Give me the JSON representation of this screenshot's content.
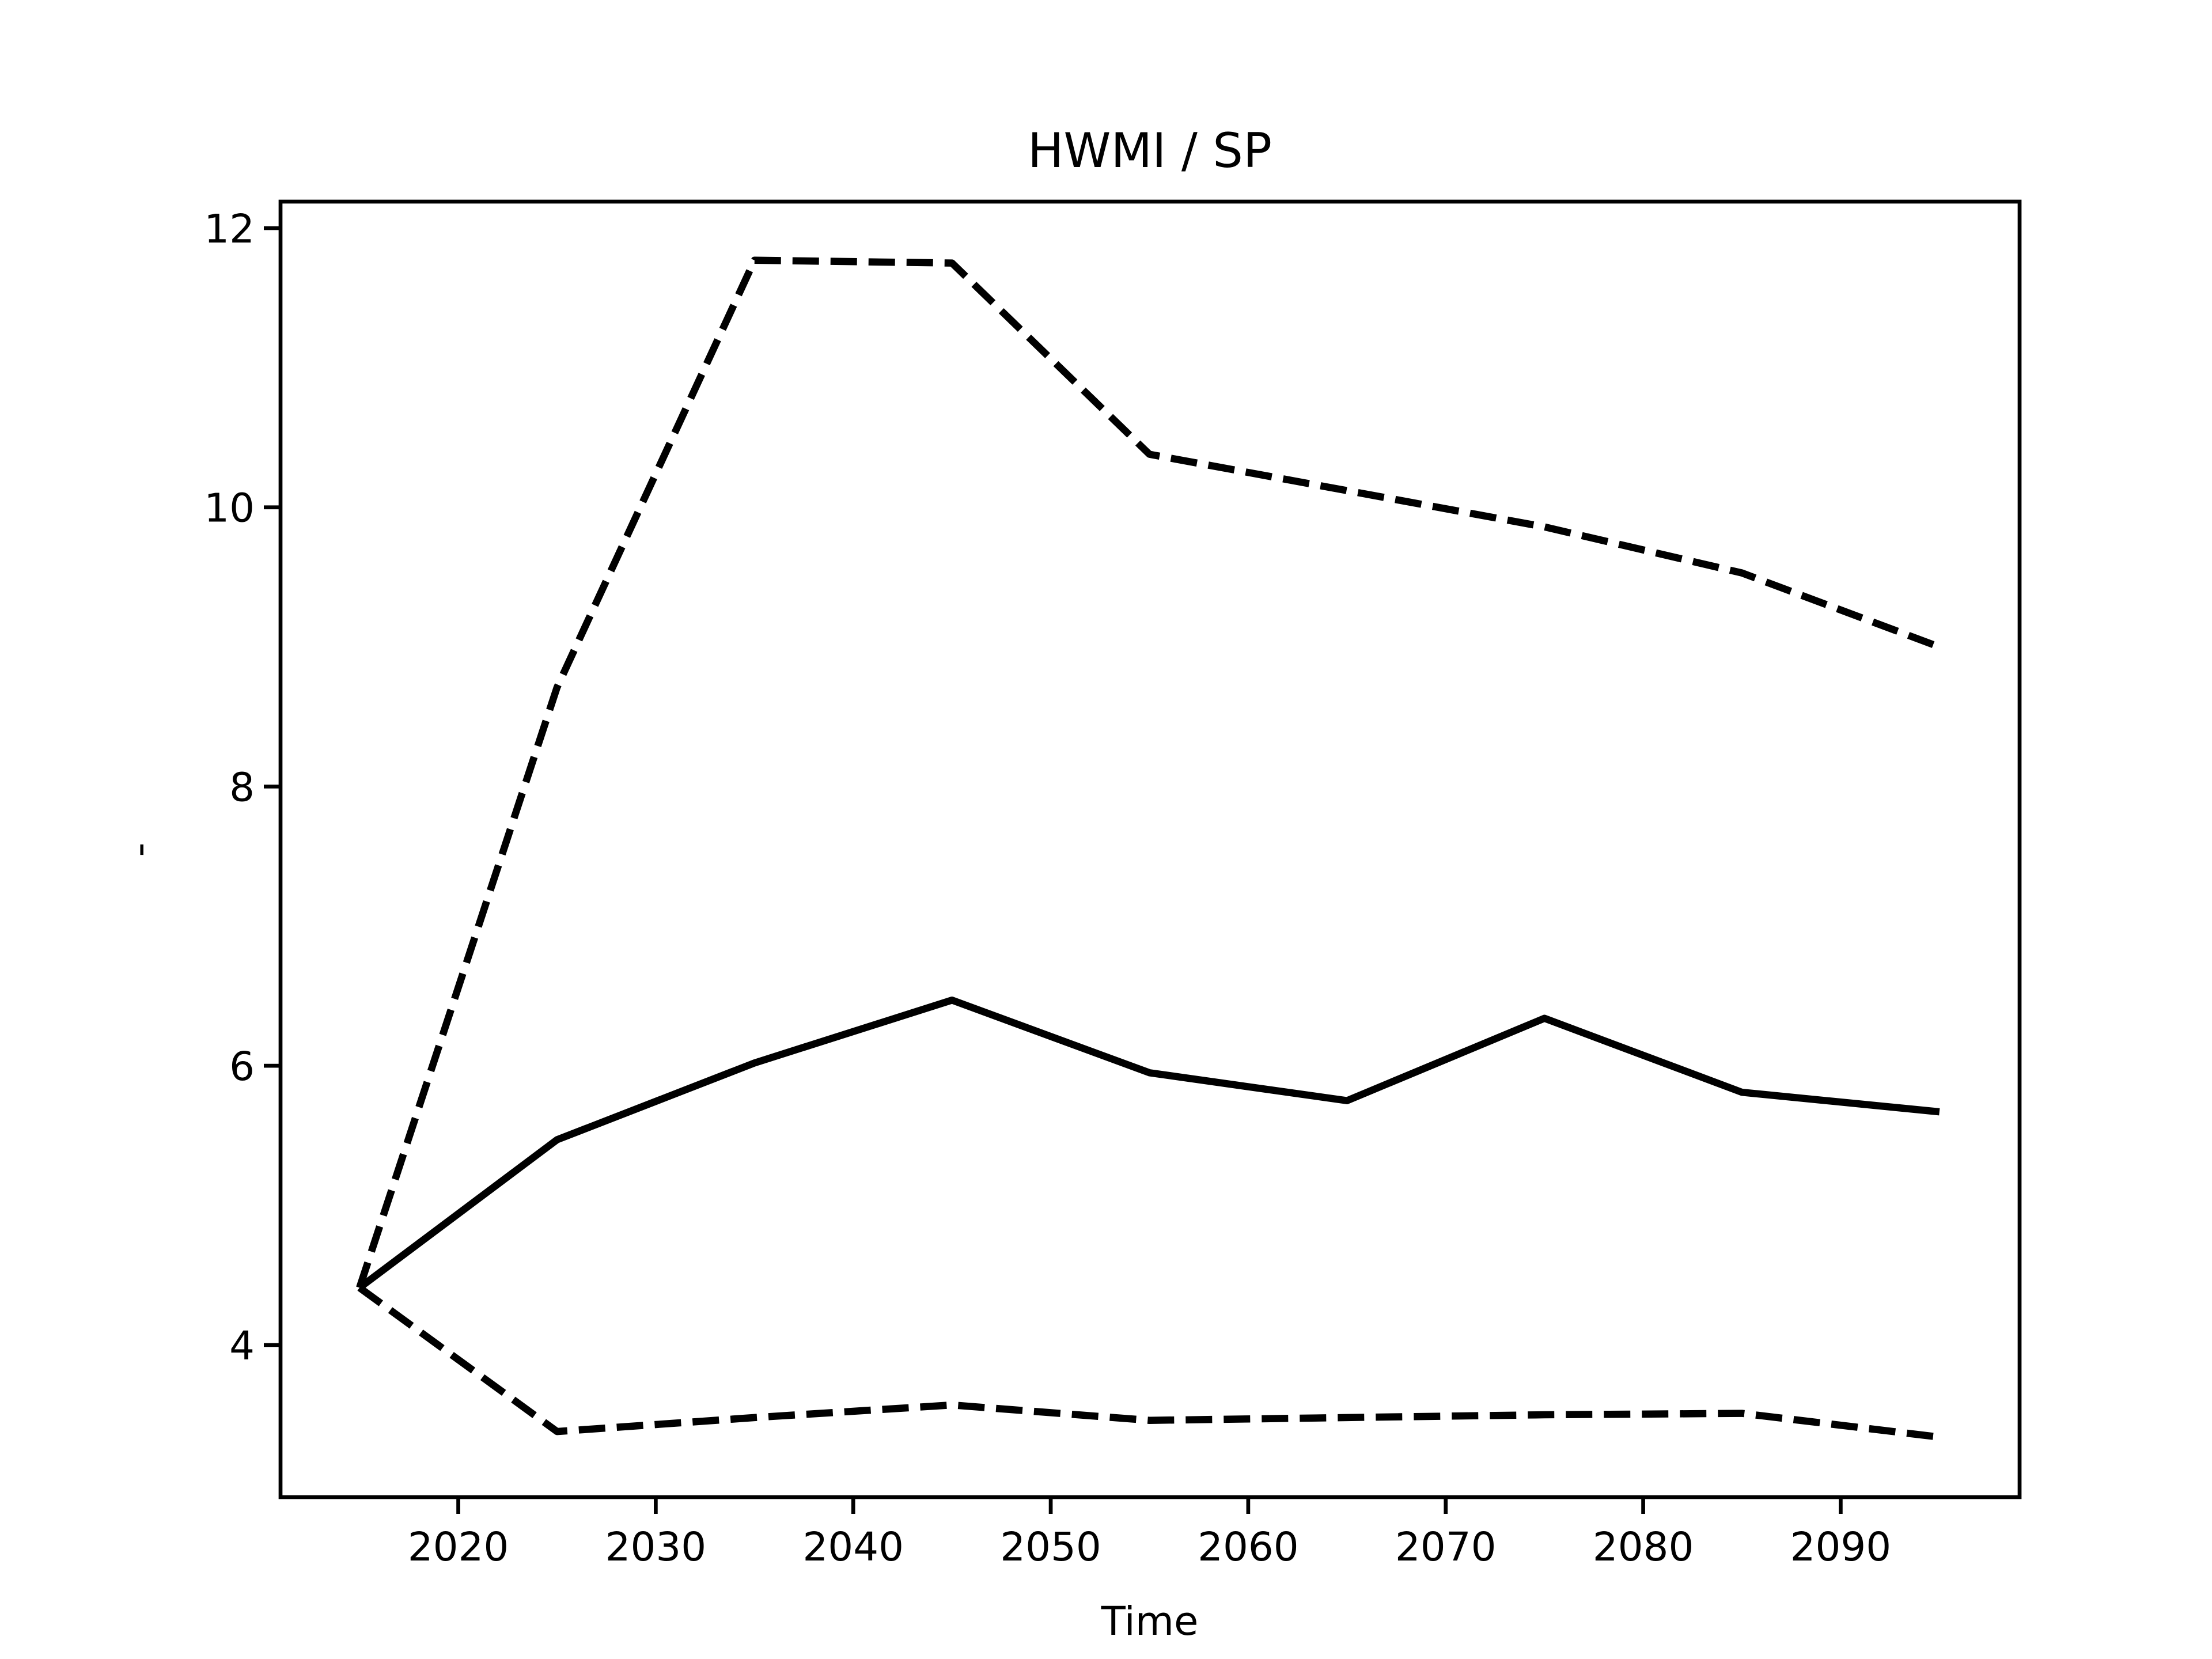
{
  "chart_data": {
    "type": "line",
    "title": "HWMI / SP",
    "xlabel": "Time",
    "ylabel": "-",
    "x": [
      2015,
      2025,
      2035,
      2045,
      2055,
      2065,
      2075,
      2085,
      2095
    ],
    "series": [
      {
        "color": "#000000",
        "linestyle": "solid",
        "values": [
          4.41,
          5.47,
          6.02,
          6.47,
          5.95,
          5.75,
          6.34,
          5.81,
          5.67
        ]
      },
      {
        "color": "#000000",
        "linestyle": "dashed",
        "values": [
          4.41,
          8.71,
          11.77,
          11.75,
          10.38,
          10.12,
          9.86,
          9.53,
          9.0
        ]
      },
      {
        "color": "#000000",
        "linestyle": "dashed",
        "values": [
          4.41,
          3.38,
          3.48,
          3.57,
          3.46,
          3.48,
          3.5,
          3.51,
          3.34
        ]
      }
    ],
    "xlim": [
      2011,
      2099.06
    ],
    "ylim": [
      2.91,
      12.19
    ],
    "xticks": [
      2020,
      2030,
      2040,
      2050,
      2060,
      2070,
      2080,
      2090
    ],
    "yticks": [
      4,
      6,
      8,
      10,
      12
    ],
    "grid": false
  }
}
